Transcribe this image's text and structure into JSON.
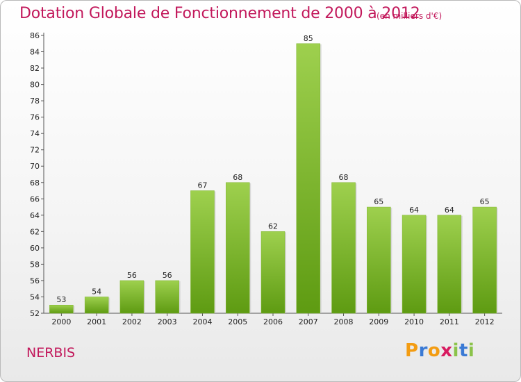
{
  "header": {
    "title": "Dotation Globale de Fonctionnement de 2000 à 2012",
    "subtitle": "(en milliers d'€)"
  },
  "footer": {
    "place": "NERBIS",
    "brand": "Proxiti"
  },
  "colors": {
    "title": "#c2185b",
    "bar_top": "#9ed04e",
    "bar_bottom": "#5e9b12",
    "brand_letters": [
      "#f39c12",
      "#3a7ad5",
      "#f39c12",
      "#d81b60",
      "#8bc34a",
      "#3a7ad5",
      "#8bc34a"
    ]
  },
  "chart_data": {
    "type": "bar",
    "title": "Dotation Globale de Fonctionnement de 2000 à 2012",
    "subtitle": "(en milliers d'€)",
    "xlabel": "",
    "ylabel": "",
    "categories": [
      "2000",
      "2001",
      "2002",
      "2003",
      "2004",
      "2005",
      "2006",
      "2007",
      "2008",
      "2009",
      "2010",
      "2011",
      "2012"
    ],
    "values": [
      53,
      54,
      56,
      56,
      67,
      68,
      62,
      85,
      68,
      65,
      64,
      64,
      65
    ],
    "ylim": [
      52,
      86
    ],
    "ytick_step": 2,
    "grid": false,
    "legend": "none"
  }
}
